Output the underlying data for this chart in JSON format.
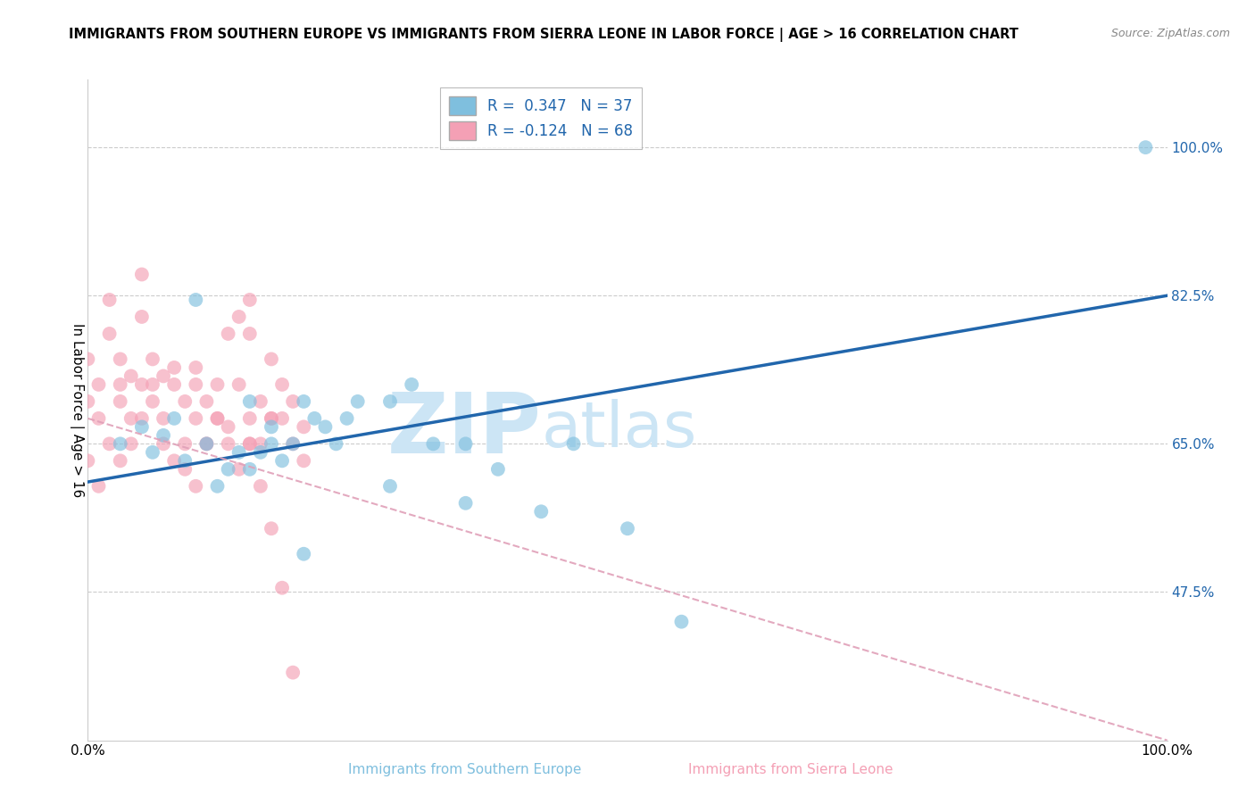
{
  "title": "IMMIGRANTS FROM SOUTHERN EUROPE VS IMMIGRANTS FROM SIERRA LEONE IN LABOR FORCE | AGE > 16 CORRELATION CHART",
  "source": "Source: ZipAtlas.com",
  "ylabel": "In Labor Force | Age > 16",
  "xlim": [
    0.0,
    100.0
  ],
  "ylim": [
    30.0,
    108.0
  ],
  "yticks": [
    47.5,
    65.0,
    82.5,
    100.0
  ],
  "blue_color": "#7fbfde",
  "blue_color_edge": "#7fbfde",
  "pink_color": "#f4a0b5",
  "pink_color_edge": "#f4a0b5",
  "blue_line_color": "#2166ac",
  "pink_line_color": "#e0a0b8",
  "legend_R_blue": "R =  0.347",
  "legend_N_blue": "N = 37",
  "legend_R_pink": "R = -0.124",
  "legend_N_pink": "N = 68",
  "legend_text_color": "#2166ac",
  "watermark_color": "#cce5f5",
  "blue_line": {
    "x0": 0,
    "x1": 100,
    "y0": 60.5,
    "y1": 82.5
  },
  "pink_line": {
    "x0": 0,
    "x1": 100,
    "y0": 68.0,
    "y1": 30.0
  },
  "blue_scatter_x": [
    3,
    5,
    6,
    7,
    8,
    9,
    10,
    11,
    12,
    13,
    14,
    15,
    16,
    17,
    18,
    19,
    20,
    21,
    22,
    23,
    25,
    28,
    30,
    32,
    35,
    38,
    42,
    45,
    50,
    55,
    98,
    15,
    17,
    20,
    24,
    28,
    35
  ],
  "blue_scatter_y": [
    65,
    67,
    64,
    66,
    68,
    63,
    82,
    65,
    60,
    62,
    64,
    70,
    64,
    67,
    63,
    65,
    70,
    68,
    67,
    65,
    70,
    70,
    72,
    65,
    65,
    62,
    57,
    65,
    55,
    44,
    100,
    62,
    65,
    52,
    68,
    60,
    58
  ],
  "pink_scatter_x": [
    0,
    0,
    1,
    1,
    2,
    2,
    3,
    3,
    4,
    4,
    5,
    5,
    5,
    6,
    6,
    7,
    7,
    8,
    8,
    9,
    9,
    10,
    10,
    10,
    11,
    11,
    12,
    12,
    13,
    13,
    14,
    14,
    15,
    15,
    15,
    15,
    16,
    16,
    17,
    17,
    18,
    18,
    19,
    19,
    20,
    20,
    0,
    1,
    2,
    3,
    3,
    4,
    5,
    6,
    7,
    8,
    9,
    10,
    11,
    12,
    13,
    14,
    15,
    16,
    17,
    17,
    18,
    19
  ],
  "pink_scatter_y": [
    70,
    75,
    72,
    68,
    78,
    82,
    75,
    70,
    73,
    68,
    72,
    80,
    85,
    75,
    70,
    73,
    68,
    72,
    74,
    65,
    70,
    72,
    68,
    74,
    65,
    70,
    72,
    68,
    65,
    78,
    72,
    80,
    82,
    78,
    68,
    65,
    65,
    70,
    68,
    75,
    72,
    68,
    65,
    70,
    67,
    63,
    63,
    60,
    65,
    63,
    72,
    65,
    68,
    72,
    65,
    63,
    62,
    60,
    65,
    68,
    67,
    62,
    65,
    60,
    55,
    68,
    48,
    38
  ]
}
